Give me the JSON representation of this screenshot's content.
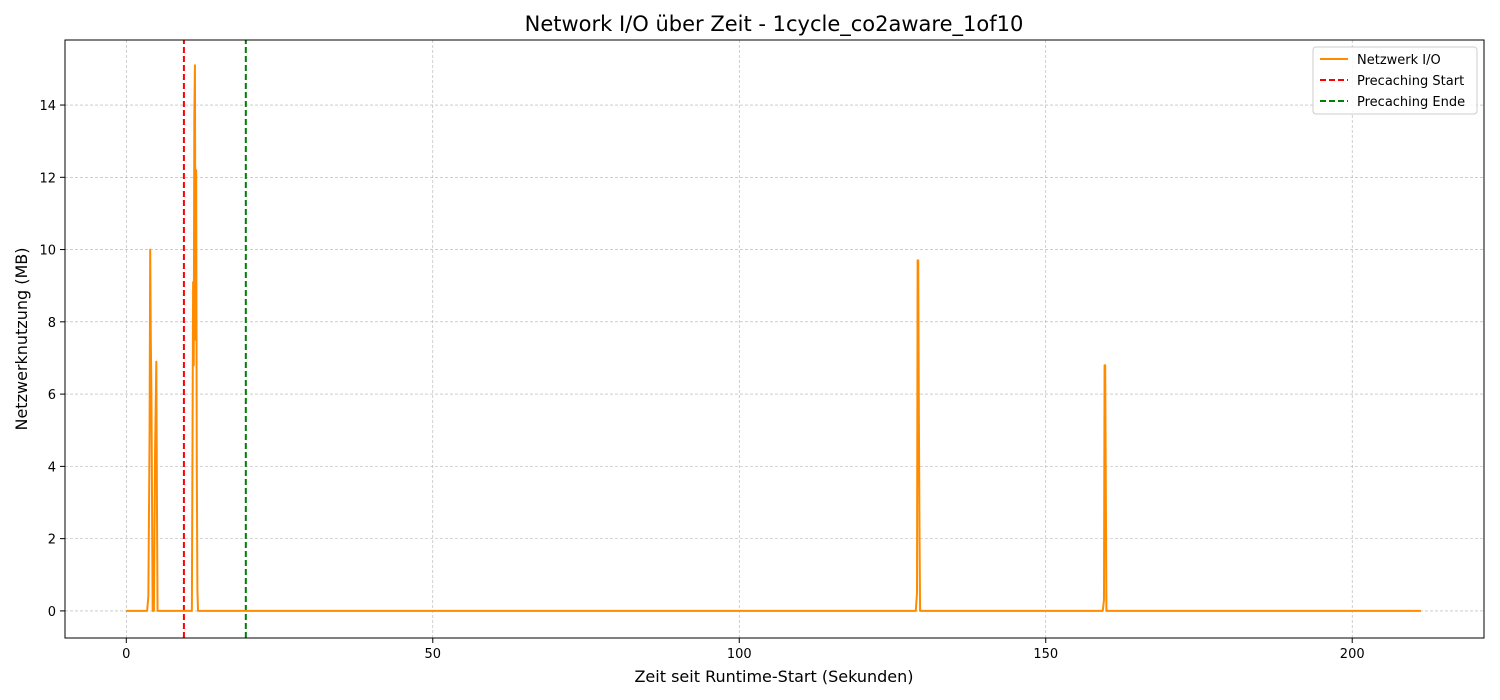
{
  "chart_data": {
    "type": "line",
    "title": "Network I/O über Zeit - 1cycle_co2aware_1of10",
    "xlabel": "Zeit seit Runtime-Start (Sekunden)",
    "ylabel": "Netzwerknutzung (MB)",
    "xlim": [
      -10,
      221.5
    ],
    "ylim": [
      -0.75,
      15.8
    ],
    "xticks": [
      0,
      50,
      100,
      150,
      200
    ],
    "yticks": [
      0,
      2,
      4,
      6,
      8,
      10,
      12,
      14
    ],
    "grid": true,
    "legend_position": "top-right",
    "series": [
      {
        "name": "Netzwerk I/O",
        "color": "#ff8c00",
        "x": [
          0,
          3.4,
          3.6,
          3.8,
          3.9,
          4.0,
          4.1,
          4.2,
          4.3,
          4.5,
          4.7,
          4.9,
          5.0,
          5.1,
          5.3,
          5.5,
          10.7,
          10.9,
          11.0,
          11.1,
          11.2,
          11.3,
          11.4,
          11.5,
          11.6,
          11.7,
          11.8,
          11.9,
          12.0,
          12.2,
          12.4,
          12.6,
          128.8,
          129.0,
          129.1,
          129.2,
          129.3,
          129.4,
          129.5,
          129.7,
          159.3,
          159.5,
          159.6,
          159.7,
          159.8,
          159.9,
          160.1,
          211.2
        ],
        "y": [
          0,
          0,
          0.4,
          5.0,
          10.0,
          7.5,
          6.0,
          3.0,
          0,
          0,
          4.5,
          6.9,
          3.0,
          0,
          0,
          0,
          0,
          9.1,
          6.8,
          13.7,
          15.1,
          7.5,
          12.2,
          4.0,
          0.6,
          0,
          0,
          0,
          0,
          0,
          0,
          0,
          0,
          0.5,
          9.7,
          9.7,
          5.5,
          2.4,
          0,
          0,
          0,
          0.3,
          6.8,
          6.8,
          3.5,
          0,
          0,
          0
        ]
      },
      {
        "name": "Precaching Start",
        "color": "#ff0000",
        "dash": "dashed",
        "x": [
          9.4,
          9.4
        ],
        "y": [
          -0.75,
          15.8
        ]
      },
      {
        "name": "Precaching Ende",
        "color": "#008000",
        "dash": "dashed",
        "x": [
          19.5,
          19.5
        ],
        "y": [
          -0.75,
          15.8
        ]
      }
    ]
  }
}
